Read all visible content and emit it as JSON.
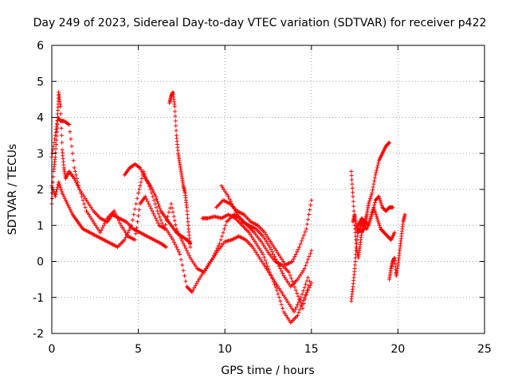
{
  "chart_data": {
    "type": "scatter",
    "title": "Day 249 of 2023, Sidereal Day-to-day VTEC variation (SDTVAR) for receiver p422",
    "xlabel": "GPS time / hours",
    "ylabel": "SDTVAR / TECUs",
    "xlim": [
      0,
      25
    ],
    "ylim": [
      -2,
      6
    ],
    "xticks": [
      0,
      5,
      10,
      15,
      20,
      25
    ],
    "yticks": [
      -2,
      -1,
      0,
      1,
      2,
      3,
      4,
      5,
      6
    ],
    "xtick_labels": [
      "0",
      "5",
      "10",
      "15",
      "20",
      "25"
    ],
    "ytick_labels": [
      "-2",
      "-1",
      "0",
      "1",
      "2",
      "3",
      "4",
      "5",
      "6"
    ],
    "grid": true,
    "marker": "plus",
    "color": "#ff0000",
    "series": [
      {
        "name": "s1",
        "x": [
          0.0,
          0.2,
          0.35,
          0.5,
          0.7,
          1.0,
          1.3,
          1.6,
          2.0,
          2.4,
          2.8,
          3.2,
          3.6,
          4.0,
          4.4,
          4.8,
          5.1,
          5.4,
          5.8,
          6.2,
          6.6,
          7.0,
          7.4,
          7.8,
          8.1,
          8.5,
          8.9,
          9.3,
          9.7,
          10.1,
          10.5,
          10.9,
          11.3,
          11.7,
          12.1,
          12.5,
          12.9,
          13.3,
          13.7,
          14.1,
          14.5,
          14.9
        ],
        "y": [
          2.9,
          3.5,
          4.0,
          3.9,
          3.9,
          3.8,
          2.6,
          2.0,
          1.4,
          1.1,
          0.8,
          1.2,
          1.4,
          1.0,
          0.7,
          0.6,
          1.6,
          1.8,
          1.4,
          1.0,
          0.9,
          0.6,
          0.2,
          -0.7,
          -0.85,
          -0.5,
          -0.2,
          0.1,
          0.5,
          1.1,
          1.3,
          1.2,
          1.0,
          0.8,
          0.55,
          0.25,
          0.0,
          -0.1,
          -0.3,
          -0.8,
          -1.3,
          -0.55
        ]
      },
      {
        "name": "s2",
        "x": [
          0.0,
          0.2,
          0.4,
          0.6,
          0.9,
          1.2,
          1.5,
          1.8,
          2.2,
          2.6,
          3.0,
          3.4,
          3.8,
          4.2,
          4.6,
          5.0,
          5.3,
          5.7,
          6.1,
          6.5,
          6.9,
          7.2,
          7.6,
          8.0,
          8.4,
          8.8,
          9.2,
          9.6,
          10.0,
          10.4,
          10.8,
          11.2,
          11.6,
          12.0,
          12.4,
          12.8,
          13.2,
          13.6,
          14.0,
          14.4,
          14.8
        ],
        "y": [
          2.1,
          1.8,
          2.2,
          1.9,
          1.6,
          1.3,
          1.1,
          0.9,
          0.8,
          0.7,
          0.6,
          0.5,
          0.4,
          0.6,
          1.0,
          1.9,
          2.5,
          2.0,
          1.4,
          0.9,
          1.6,
          0.9,
          0.5,
          0.1,
          -0.2,
          -0.3,
          0.0,
          0.3,
          0.55,
          0.6,
          0.7,
          0.6,
          0.4,
          0.1,
          -0.2,
          -0.5,
          -0.8,
          -1.1,
          -1.4,
          -1.0,
          -0.45
        ]
      },
      {
        "name": "s3",
        "x": [
          0.0,
          0.1,
          0.2,
          0.3,
          0.35,
          0.4,
          0.5,
          0.6,
          0.7,
          0.8,
          1.0,
          1.3,
          1.6,
          2.0,
          2.4,
          2.8,
          3.2,
          3.5,
          3.9,
          4.3,
          4.7,
          5.1,
          5.5,
          5.9,
          6.3,
          6.6
        ],
        "y": [
          1.6,
          2.5,
          2.9,
          3.6,
          4.2,
          4.7,
          4.3,
          3.1,
          2.6,
          2.3,
          2.5,
          2.3,
          2.0,
          1.7,
          1.4,
          1.2,
          1.1,
          1.3,
          1.2,
          1.1,
          0.9,
          0.8,
          0.7,
          0.6,
          0.5,
          0.4
        ]
      },
      {
        "name": "s4",
        "x": [
          4.2,
          4.5,
          4.8,
          5.1,
          5.4,
          5.7,
          6.0,
          6.3,
          6.6,
          6.9,
          7.2,
          7.5,
          7.8,
          8.0
        ],
        "y": [
          2.4,
          2.6,
          2.7,
          2.6,
          2.3,
          2.1,
          1.8,
          1.4,
          1.2,
          1.0,
          0.8,
          0.7,
          0.6,
          0.5
        ]
      },
      {
        "name": "s5",
        "x": [
          6.8,
          6.9,
          7.0,
          7.1,
          7.2,
          7.3,
          7.4,
          7.5,
          7.6,
          7.7,
          7.8,
          7.9,
          8.0
        ],
        "y": [
          4.4,
          4.6,
          4.7,
          4.3,
          3.5,
          3.0,
          2.7,
          2.4,
          2.1,
          1.9,
          1.5,
          0.9,
          0.4
        ]
      },
      {
        "name": "s6",
        "x": [
          8.7,
          9.0,
          9.4,
          9.8,
          10.2,
          10.6,
          11.0,
          11.4,
          11.8,
          12.2,
          12.6,
          13.0,
          13.4,
          13.8,
          14.2,
          14.6,
          15.0
        ],
        "y": [
          1.2,
          1.2,
          1.25,
          1.2,
          1.3,
          1.2,
          1.0,
          0.8,
          0.5,
          0.2,
          -0.3,
          -0.8,
          -1.4,
          -1.7,
          -1.5,
          -1.0,
          -0.6
        ]
      },
      {
        "name": "s7",
        "x": [
          9.5,
          9.9,
          10.3,
          10.7,
          11.1,
          11.5,
          11.9,
          12.3,
          12.7,
          13.1,
          13.5,
          13.9,
          14.3,
          14.7,
          15.0
        ],
        "y": [
          1.5,
          1.7,
          1.6,
          1.4,
          1.3,
          1.1,
          1.0,
          0.8,
          0.5,
          0.2,
          -0.1,
          0.0,
          0.4,
          0.9,
          1.7
        ]
      },
      {
        "name": "s8",
        "x": [
          9.8,
          10.2,
          10.6,
          11.0,
          11.4,
          11.8,
          12.2,
          12.6,
          13.0,
          13.4,
          13.8,
          14.2,
          14.6,
          15.0
        ],
        "y": [
          2.1,
          1.8,
          1.4,
          1.1,
          1.0,
          0.9,
          0.7,
          0.4,
          0.0,
          -0.4,
          -0.7,
          -0.5,
          -0.2,
          0.3
        ]
      },
      {
        "name": "s9",
        "x": [
          17.3,
          17.4,
          17.5,
          17.6,
          17.7,
          17.8,
          17.9,
          18.0,
          18.1,
          18.2,
          18.3,
          18.5,
          18.7,
          18.9,
          19.1,
          19.3,
          19.5
        ],
        "y": [
          2.5,
          1.8,
          1.0,
          0.4,
          0.1,
          0.4,
          0.8,
          0.9,
          1.1,
          1.3,
          1.6,
          1.9,
          2.4,
          2.8,
          3.0,
          3.2,
          3.3
        ]
      },
      {
        "name": "s10",
        "x": [
          17.3,
          17.4,
          17.5,
          17.6,
          17.7,
          17.9,
          18.1,
          18.3,
          18.5,
          18.7,
          18.9,
          19.1,
          19.3,
          19.5,
          19.7
        ],
        "y": [
          -1.1,
          -0.7,
          -0.2,
          0.4,
          1.0,
          1.2,
          1.1,
          1.0,
          1.3,
          1.7,
          1.8,
          1.5,
          1.4,
          1.5,
          1.5
        ]
      },
      {
        "name": "s11",
        "x": [
          17.4,
          17.5,
          17.6,
          17.7,
          17.8,
          17.9,
          18.0,
          18.2,
          18.4,
          18.6,
          18.8,
          19.0,
          19.2,
          19.4,
          19.6,
          19.8
        ],
        "y": [
          1.1,
          1.3,
          1.0,
          0.8,
          0.9,
          1.1,
          1.0,
          0.9,
          1.2,
          1.5,
          1.2,
          0.9,
          0.8,
          0.7,
          0.6,
          0.8
        ]
      },
      {
        "name": "s12",
        "x": [
          19.5,
          19.6,
          19.7,
          19.8,
          19.9,
          20.0,
          20.1,
          20.2,
          20.3,
          20.4
        ],
        "y": [
          -0.5,
          -0.2,
          0.0,
          0.1,
          -0.4,
          -0.1,
          0.3,
          0.7,
          1.1,
          1.3
        ]
      }
    ]
  }
}
